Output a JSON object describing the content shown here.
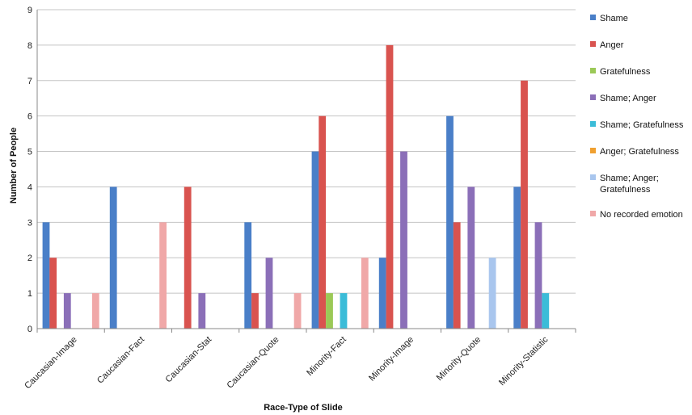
{
  "chart_data": {
    "type": "bar",
    "xlabel": "Race-Type of Slide",
    "ylabel": "Number of People",
    "ylim": [
      0,
      9
    ],
    "yticks": [
      0,
      1,
      2,
      3,
      4,
      5,
      6,
      7,
      8,
      9
    ],
    "grid": true,
    "legend_position": "right",
    "categories": [
      "Caucasian-Image",
      "Caucasian-Fact",
      "Caucasian-Stat",
      "Caucasian-Quote",
      "Minority-Fact",
      "Minority-Image",
      "Minority-Quote",
      "Minority-Statistic"
    ],
    "series": [
      {
        "name": "Shame",
        "color": "#4a7fc8",
        "values": [
          3,
          4,
          0,
          3,
          5,
          2,
          6,
          4
        ]
      },
      {
        "name": "Anger",
        "color": "#d9534f",
        "values": [
          2,
          0,
          4,
          1,
          6,
          8,
          3,
          7
        ]
      },
      {
        "name": "Gratefulness",
        "color": "#9bc957",
        "values": [
          0,
          0,
          0,
          0,
          1,
          0,
          0,
          0
        ]
      },
      {
        "name": "Shame; Anger",
        "color": "#8b6fb8",
        "values": [
          1,
          0,
          1,
          2,
          0,
          5,
          4,
          3
        ]
      },
      {
        "name": "Shame; Gratefulness",
        "color": "#3bbcd8",
        "values": [
          0,
          0,
          0,
          0,
          1,
          0,
          0,
          1
        ]
      },
      {
        "name": "Anger; Gratefulness",
        "color": "#f0a030",
        "values": [
          0,
          0,
          0,
          0,
          0,
          0,
          0,
          0
        ]
      },
      {
        "name": "Shame; Anger; Gratefulness",
        "legend_lines": [
          "Shame; Anger;",
          "Gratefulness"
        ],
        "color": "#a9c6ee",
        "values": [
          0,
          0,
          0,
          0,
          0,
          0,
          2,
          0
        ]
      },
      {
        "name": "No recorded emotion",
        "color": "#f0a8a8",
        "values": [
          1,
          3,
          0,
          1,
          2,
          0,
          0,
          0
        ]
      }
    ]
  }
}
